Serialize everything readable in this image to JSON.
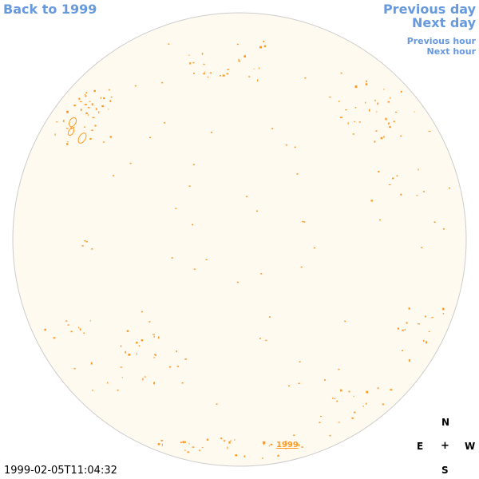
{
  "nav": {
    "back_label": "Back to 1999",
    "prev_day_label": "Previous day",
    "next_day_label": "Next day",
    "prev_hour_label": "Previous hour",
    "next_hour_label": "Next hour"
  },
  "map": {
    "year_label": "1999",
    "timestamp": "1999-02-05T11:04:32",
    "compass": {
      "north": "N",
      "south": "S",
      "east": "E",
      "west": "W",
      "center": "+"
    }
  },
  "colors": {
    "link": "#6699dd",
    "disk_fill": "#fffaf0",
    "disk_border": "#cccccc",
    "marker": "#ff9922"
  }
}
